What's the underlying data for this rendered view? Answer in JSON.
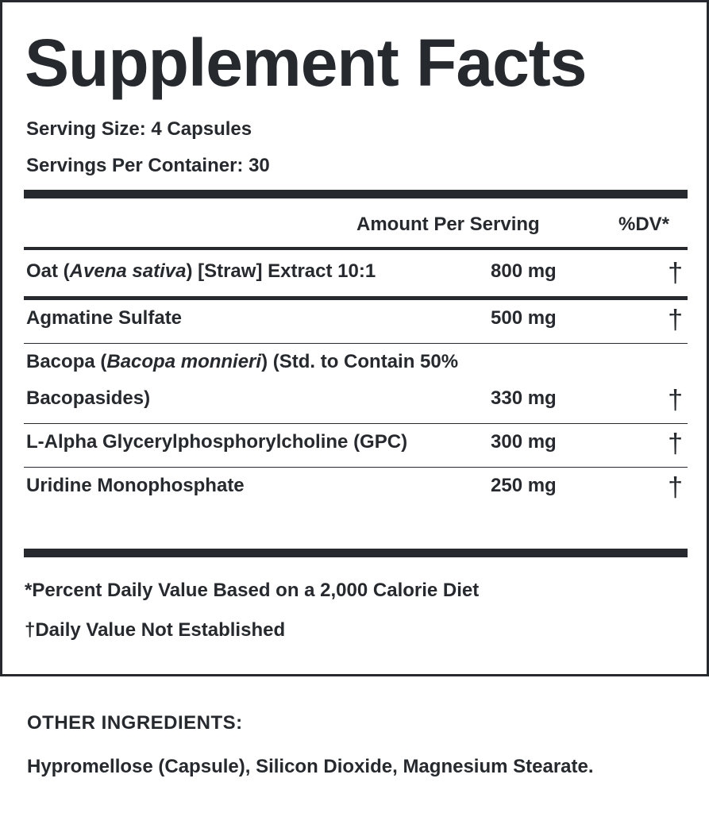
{
  "panel": {
    "title": "Supplement Facts",
    "serving_size": "Serving Size: 4 Capsules",
    "servings_per_container": "Servings Per Container: 30",
    "header": {
      "amount": "Amount Per Serving",
      "dv": "%DV*"
    },
    "rows": [
      {
        "name": [
          {
            "text": "Oat (",
            "italic": false
          },
          {
            "text": "Avena sativa",
            "italic": true
          },
          {
            "text": ") [Straw] Extract 10:1",
            "italic": false
          }
        ],
        "amount": "800 mg",
        "dv": "†"
      },
      {
        "name": [
          {
            "text": "Agmatine Sulfate",
            "italic": false
          }
        ],
        "amount": "500 mg",
        "dv": "†"
      },
      {
        "name": [
          {
            "text": "Bacopa (",
            "italic": false
          },
          {
            "text": "Bacopa monnieri",
            "italic": true
          },
          {
            "text": ") (Std. to Contain 50% Bacopasides)",
            "italic": false
          }
        ],
        "amount": "330 mg",
        "dv": "†"
      },
      {
        "name": [
          {
            "text": "L-Alpha Glycerylphosphorylcholine (GPC)",
            "italic": false
          }
        ],
        "amount": "300 mg",
        "dv": "†"
      },
      {
        "name": [
          {
            "text": "Uridine Monophosphate",
            "italic": false
          }
        ],
        "amount": "250 mg",
        "dv": "†"
      }
    ],
    "footnotes": [
      "*Percent Daily Value Based on a 2,000 Calorie Diet",
      "†Daily Value Not Established"
    ]
  },
  "other_ingredients": {
    "heading": "OTHER INGREDIENTS:",
    "text": "Hypromellose (Capsule), Silicon Dioxide, Magnesium Stearate."
  }
}
